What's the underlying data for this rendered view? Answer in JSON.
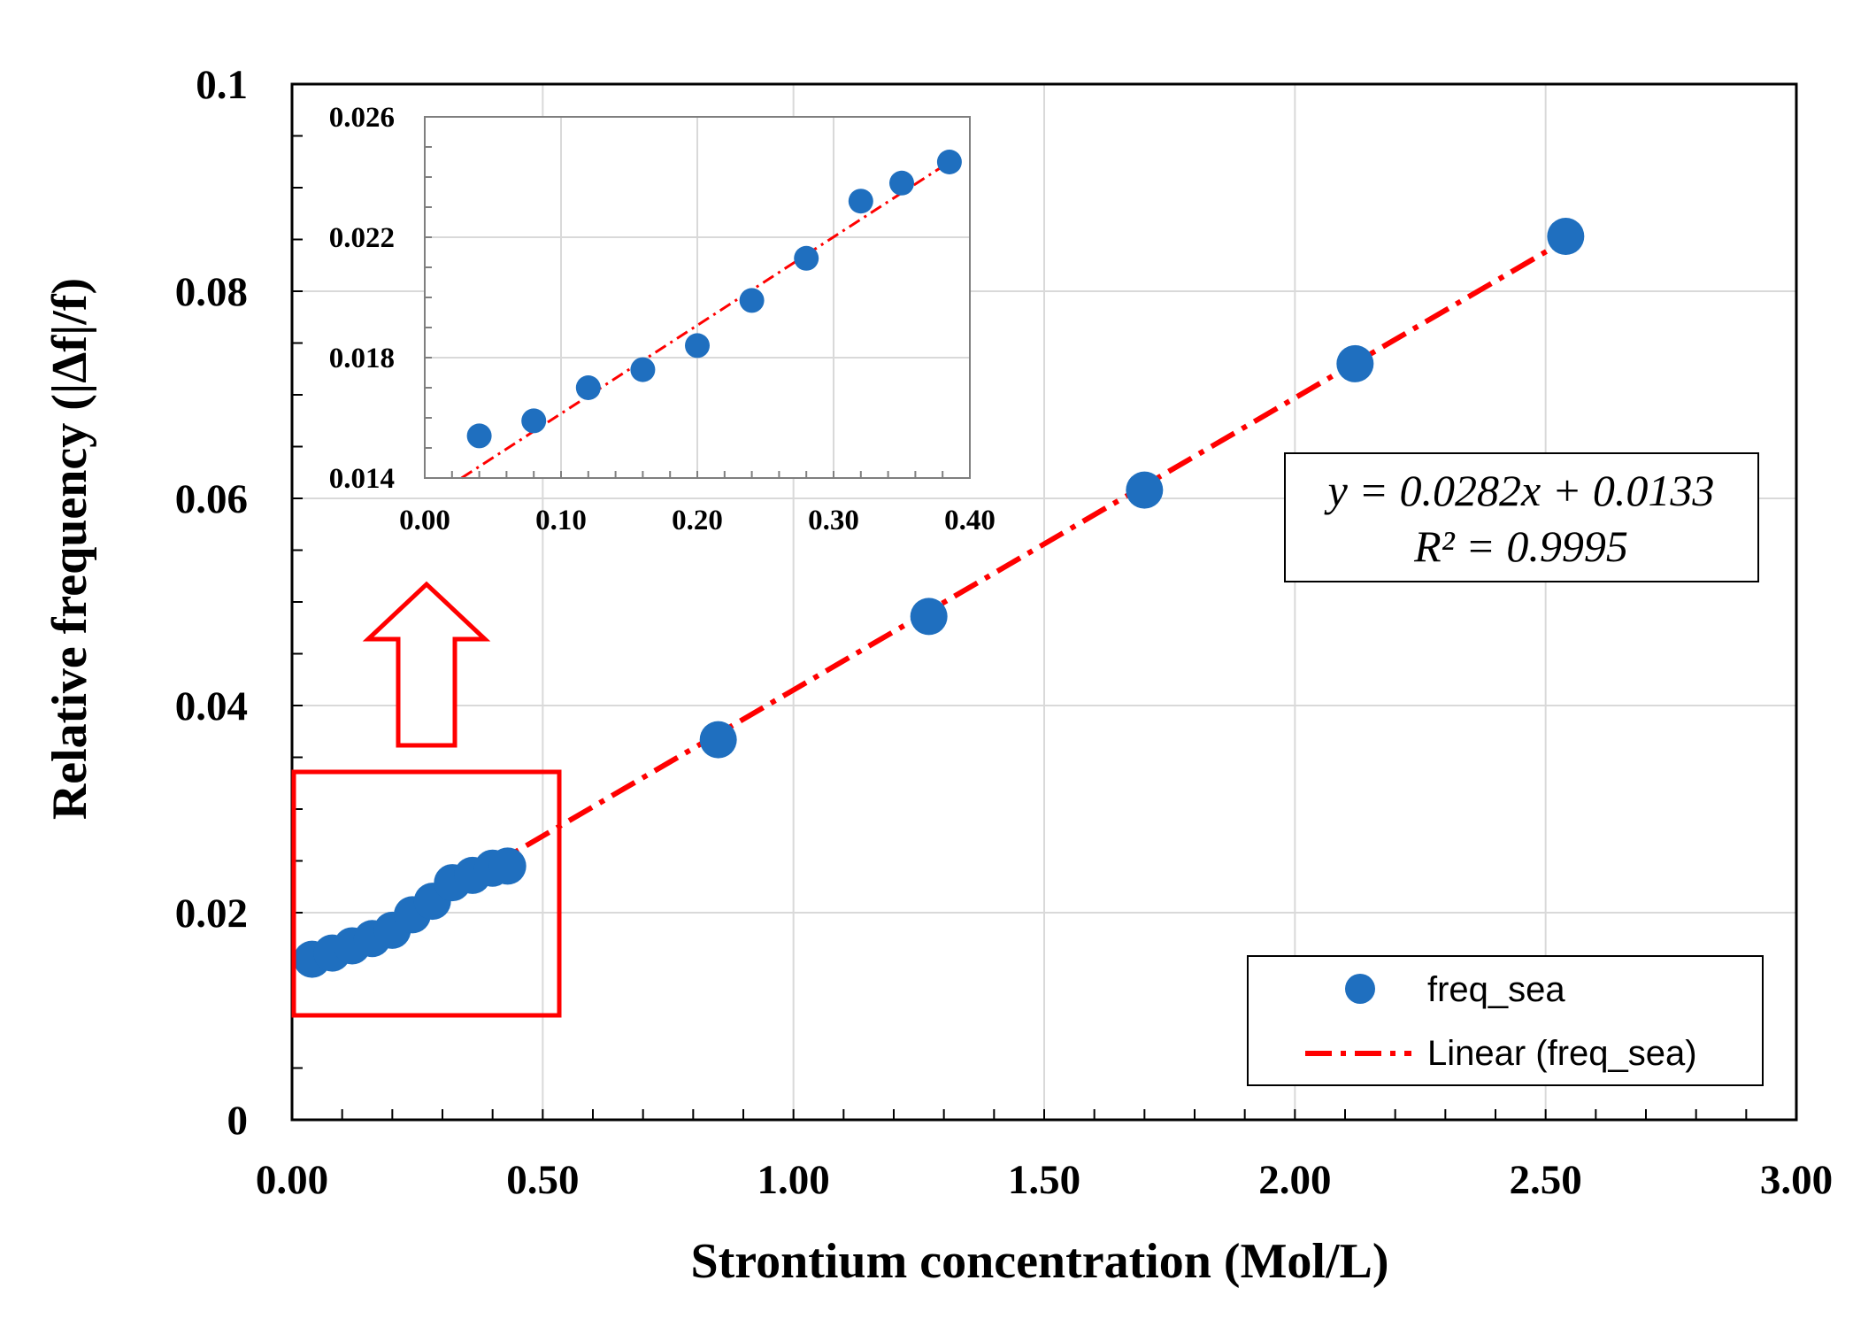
{
  "chart_data": [
    {
      "id": "main",
      "type": "scatter",
      "title": "",
      "xlabel": "Strontium concentration (Mol/L)",
      "ylabel": "Relative frequency (|Δf|/f)",
      "xlim": [
        0,
        3
      ],
      "ylim": [
        0,
        0.1
      ],
      "x_ticks": [
        "0.00",
        "0.50",
        "1.00",
        "1.50",
        "2.00",
        "2.50",
        "3.00"
      ],
      "y_ticks": [
        "0",
        "0.02",
        "0.04",
        "0.06",
        "0.08",
        "0.1"
      ],
      "grid": true,
      "series": [
        {
          "name": "freq_sea",
          "color": "#1f6fbf",
          "x": [
            0.04,
            0.08,
            0.12,
            0.16,
            0.2,
            0.24,
            0.28,
            0.32,
            0.36,
            0.4,
            0.43,
            0.85,
            1.27,
            1.7,
            2.12,
            2.54
          ],
          "y": [
            0.0155,
            0.0161,
            0.0168,
            0.0175,
            0.0183,
            0.0198,
            0.0211,
            0.0229,
            0.0236,
            0.0243,
            0.0245,
            0.0367,
            0.0486,
            0.0608,
            0.073,
            0.0853
          ]
        }
      ],
      "trendline": {
        "name": "Linear (freq_sea)",
        "type": "linear",
        "slope": 0.0282,
        "intercept": 0.0133,
        "x_range": [
          0.04,
          2.54
        ],
        "color": "#ff0000",
        "style": "dash-dot"
      },
      "equation_line1": "y = 0.0282x + 0.0133",
      "equation_line2": "R² = 0.9995",
      "legend": {
        "position": "bottom-right",
        "marker_label": "freq_sea",
        "line_label": "Linear (freq_sea)"
      }
    },
    {
      "id": "inset",
      "type": "scatter",
      "title": "",
      "xlabel": "",
      "ylabel": "",
      "xlim": [
        0,
        0.4
      ],
      "ylim": [
        0.014,
        0.026
      ],
      "x_ticks": [
        "0.00",
        "0.10",
        "0.20",
        "0.30",
        "0.40"
      ],
      "y_ticks": [
        "0.014",
        "0.018",
        "0.022",
        "0.026"
      ],
      "grid": true,
      "series": [
        {
          "name": "freq_sea",
          "color": "#1f6fbf",
          "x": [
            0.04,
            0.08,
            0.12,
            0.16,
            0.2,
            0.24,
            0.28,
            0.32,
            0.35,
            0.385
          ],
          "y": [
            0.0154,
            0.0159,
            0.017,
            0.0176,
            0.0184,
            0.0199,
            0.0213,
            0.0232,
            0.0238,
            0.0245
          ]
        }
      ],
      "trendline": {
        "type": "linear",
        "x_range": [
          0.027,
          0.385
        ],
        "y_range": [
          0.014,
          0.0245
        ],
        "color": "#ff0000",
        "style": "dash-dot"
      }
    }
  ],
  "colors": {
    "marker": "#1f6fbf",
    "trendline": "#ff0000",
    "zoom_box": "#ff0000",
    "grid": "#d9d9d9"
  }
}
